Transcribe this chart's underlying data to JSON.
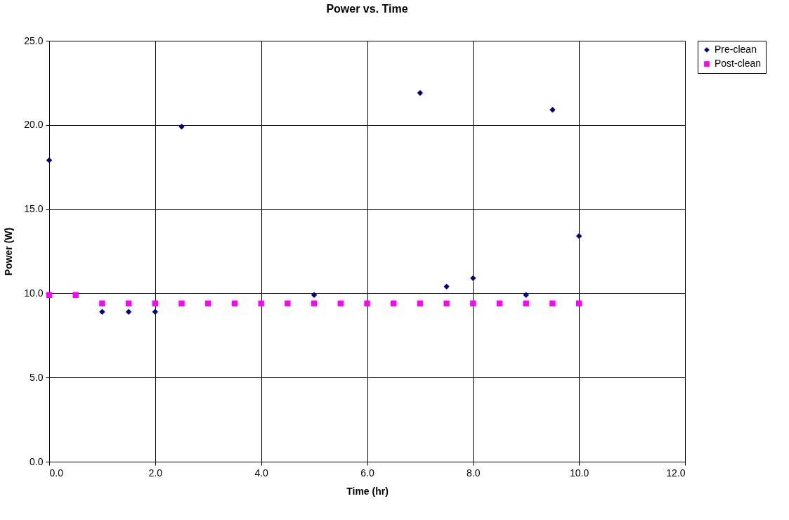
{
  "chart_data": {
    "type": "scatter",
    "title": "Power vs. Time",
    "xlabel": "Time (hr)",
    "ylabel": "Power (W)",
    "xlim": [
      0,
      12
    ],
    "xticks": [
      {
        "value": 0,
        "label": "0.0"
      },
      {
        "value": 2,
        "label": "2.0"
      },
      {
        "value": 4,
        "label": "4.0"
      },
      {
        "value": 6,
        "label": "6.0"
      },
      {
        "value": 8,
        "label": "8.0"
      },
      {
        "value": 10,
        "label": "10.0"
      },
      {
        "value": 12,
        "label": "12.0"
      }
    ],
    "ylim": [
      0,
      25
    ],
    "yticks": [
      {
        "value": 0,
        "label": "0.0"
      },
      {
        "value": 5,
        "label": "5.0"
      },
      {
        "value": 10,
        "label": "10.0"
      },
      {
        "value": 15,
        "label": "15.0"
      },
      {
        "value": 20,
        "label": "20.0"
      },
      {
        "value": 25,
        "label": "25.0"
      }
    ],
    "grid": true,
    "legend": "right",
    "series": [
      {
        "name": "Pre-clean",
        "color": "#000080",
        "marker": "diamond",
        "x": [
          0,
          1,
          1.5,
          2,
          2.5,
          5,
          7,
          7.5,
          8,
          9,
          9.5,
          10
        ],
        "values": [
          17.9,
          8.9,
          8.9,
          8.9,
          19.9,
          9.9,
          21.9,
          10.4,
          10.9,
          9.9,
          20.9,
          13.4
        ]
      },
      {
        "name": "Post-clean",
        "color": "#ff00ff",
        "marker": "square",
        "x": [
          0,
          0.5,
          1,
          1.5,
          2,
          2.5,
          3,
          3.5,
          4,
          4.5,
          5,
          5.5,
          6,
          6.5,
          7,
          7.5,
          8,
          8.5,
          9,
          9.5,
          10
        ],
        "values": [
          9.9,
          9.9,
          9.4,
          9.4,
          9.4,
          9.4,
          9.4,
          9.4,
          9.4,
          9.4,
          9.4,
          9.4,
          9.4,
          9.4,
          9.4,
          9.4,
          9.4,
          9.4,
          9.4,
          9.4,
          9.4
        ]
      }
    ]
  }
}
